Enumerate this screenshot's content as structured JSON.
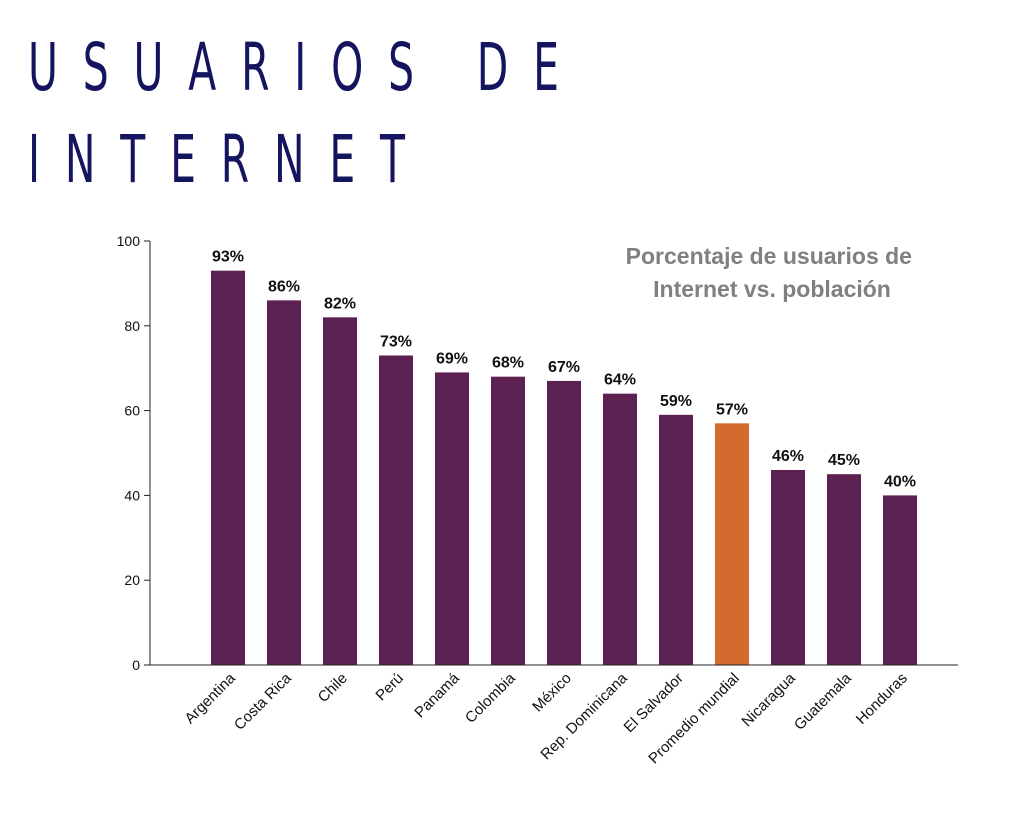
{
  "title": {
    "line1": "USUARIOS DE",
    "line2": "INTERNET"
  },
  "colors": {
    "title": "#15155f",
    "bar": "#5c2150",
    "highlight": "#d16a2c",
    "subtitle": "#808080"
  },
  "chart_data": {
    "type": "bar",
    "title": "Porcentaje de usuarios de Internet vs. población",
    "subtitle_lines": [
      "Porcentaje de usuarios de",
      "Internet vs. población"
    ],
    "xlabel": "",
    "ylabel": "",
    "ylim": [
      0,
      100
    ],
    "yticks": [
      0,
      20,
      40,
      60,
      80,
      100
    ],
    "grid": false,
    "legend": "none",
    "categories": [
      "Argentina",
      "Costa Rica",
      "Chile",
      "Perú",
      "Panamá",
      "Colombia",
      "México",
      "Rep. Dominicana",
      "El Salvador",
      "Promedio mundial",
      "Nicaragua",
      "Guatemala",
      "Honduras"
    ],
    "values": [
      93,
      86,
      82,
      73,
      69,
      68,
      67,
      64,
      59,
      57,
      46,
      45,
      40
    ],
    "data_labels": [
      "93%",
      "86%",
      "82%",
      "73%",
      "69%",
      "68%",
      "67%",
      "64%",
      "59%",
      "57%",
      "46%",
      "45%",
      "40%"
    ],
    "highlighted_category": "Promedio mundial"
  }
}
